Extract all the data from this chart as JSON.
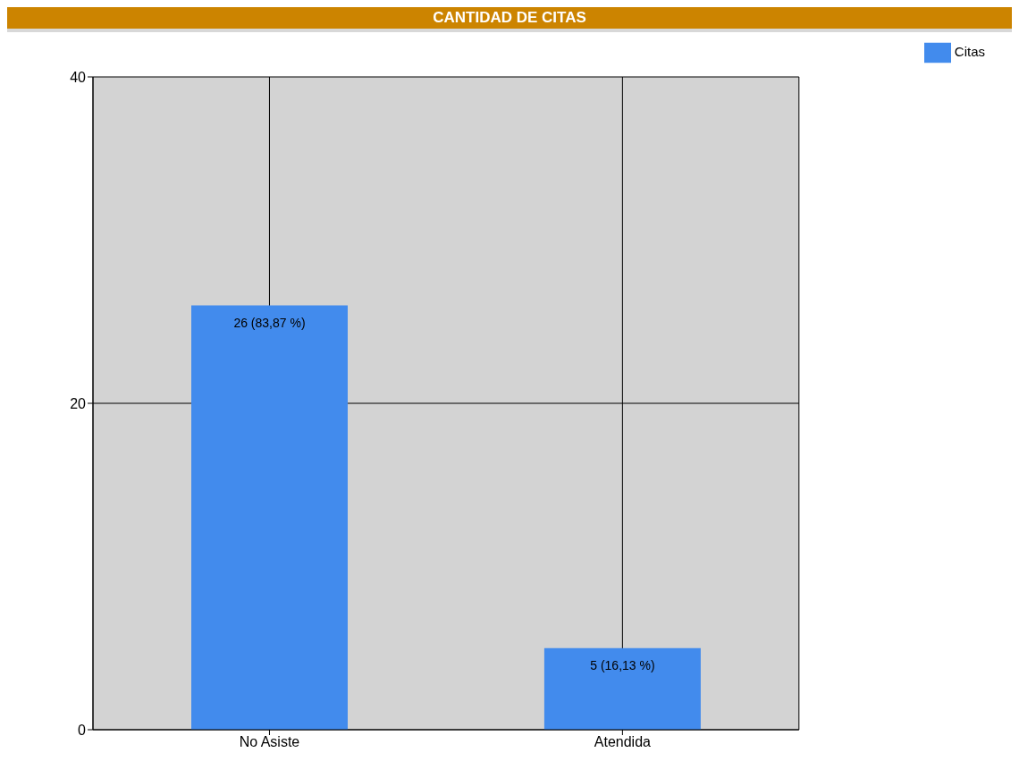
{
  "chart_data": {
    "type": "bar",
    "title": "CANTIDAD DE CITAS",
    "categories": [
      "No Asiste",
      "Atendida"
    ],
    "series": [
      {
        "name": "Citas",
        "color": "#428bed",
        "values": [
          26,
          5
        ],
        "value_labels": [
          "26 (83,87 %)",
          "5 (16,13 %)"
        ]
      }
    ],
    "ylim": [
      0,
      40
    ],
    "yticks": [
      0,
      20,
      40
    ],
    "grid": true,
    "legend": "top right"
  }
}
